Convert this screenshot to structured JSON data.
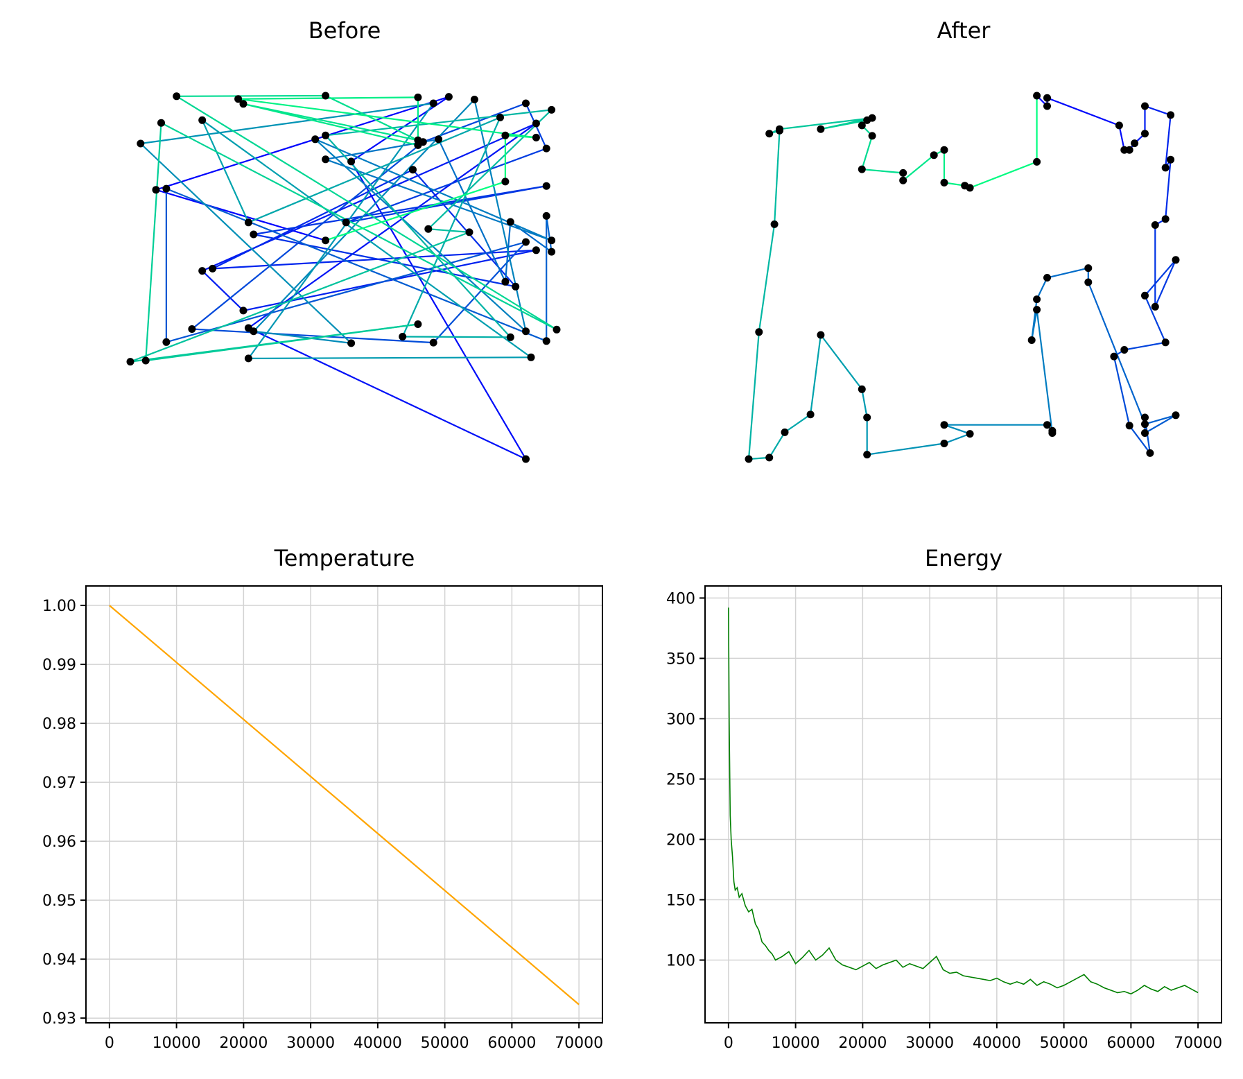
{
  "chart_data": [
    {
      "id": "before",
      "type": "line",
      "title": "Before",
      "axis_visible": false,
      "point_color": "#000000",
      "colormap": "winter",
      "points": [
        [
          -0.22,
          85.28
        ],
        [
          -0.55,
          86.21
        ],
        [
          0.02,
          87.92
        ],
        [
          -0.17,
          86.73
        ],
        [
          0.17,
          81.26
        ],
        [
          -0.37,
          83.67
        ],
        [
          0.19,
          87.43
        ],
        [
          -0.46,
          84.72
        ],
        [
          -0.38,
          83.99
        ],
        [
          0.19,
          85.1
        ],
        [
          -0.44,
          84.76
        ],
        [
          -0.05,
          86.58
        ],
        [
          0.15,
          84.43
        ],
        [
          -0.36,
          85.39
        ],
        [
          0.21,
          86.28
        ],
        [
          -0.18,
          85.61
        ],
        [
          0.21,
          86.97
        ],
        [
          0.17,
          87.8
        ],
        [
          -0.03,
          87.09
        ],
        [
          -0.48,
          83.65
        ],
        [
          -0.01,
          83.4
        ],
        [
          0.17,
          85.25
        ],
        [
          -0.53,
          83.41
        ],
        [
          -0.53,
          86.23
        ],
        [
          0.21,
          83.43
        ],
        [
          0.21,
          85.73
        ],
        [
          0.22,
          85.07
        ],
        [
          0.14,
          85.62
        ],
        [
          0.13,
          84.52
        ],
        [
          0.0,
          87.14
        ],
        [
          -0.22,
          86.77
        ],
        [
          0.22,
          85.28
        ],
        [
          -0.24,
          87.14
        ],
        [
          0.17,
          83.61
        ],
        [
          0.07,
          87.87
        ],
        [
          -0.36,
          83.61
        ],
        [
          -0.17,
          83.39
        ],
        [
          -0.58,
          87.06
        ],
        [
          -0.01,
          87.8
        ],
        [
          -0.37,
          83.11
        ],
        [
          0.18,
          83.13
        ],
        [
          -0.46,
          87.49
        ],
        [
          -0.37,
          85.61
        ],
        [
          0.12,
          87.54
        ],
        [
          -0.07,
          83.51
        ],
        [
          0.14,
          83.5
        ],
        [
          -0.22,
          87.21
        ],
        [
          0.22,
          87.68
        ],
        [
          -0.02,
          85.49
        ],
        [
          0.06,
          85.43
        ],
        [
          -0.6,
          83.05
        ],
        [
          -0.04,
          83.74
        ],
        [
          -0.57,
          83.07
        ],
        [
          -0.54,
          87.44
        ],
        [
          0.23,
          83.64
        ],
        [
          -0.51,
          87.93
        ],
        [
          -0.22,
          87.94
        ],
        [
          -0.04,
          87.12
        ],
        [
          -0.38,
          87.79
        ],
        [
          -0.04,
          87.03
        ],
        [
          -0.04,
          87.91
        ],
        [
          -0.39,
          87.88
        ],
        [
          0.19,
          87.17
        ],
        [
          0.13,
          87.21
        ],
        [
          0.13,
          86.36
        ]
      ]
    },
    {
      "id": "after",
      "type": "line",
      "title": "After",
      "axis_visible": false,
      "point_color": "#000000",
      "colormap": "winter",
      "points": [
        [
          -0.04,
          87.94
        ],
        [
          -0.02,
          87.8
        ],
        [
          -0.02,
          87.91
        ],
        [
          0.12,
          87.54
        ],
        [
          0.13,
          87.21
        ],
        [
          0.14,
          87.21
        ],
        [
          0.15,
          87.3
        ],
        [
          0.17,
          87.43
        ],
        [
          0.17,
          87.8
        ],
        [
          0.22,
          87.68
        ],
        [
          0.21,
          86.97
        ],
        [
          0.22,
          87.08
        ],
        [
          0.21,
          86.28
        ],
        [
          0.19,
          86.2
        ],
        [
          0.19,
          85.1
        ],
        [
          0.23,
          85.73
        ],
        [
          0.17,
          85.25
        ],
        [
          0.21,
          84.62
        ],
        [
          0.13,
          84.52
        ],
        [
          0.11,
          84.43
        ],
        [
          0.14,
          83.5
        ],
        [
          0.18,
          83.13
        ],
        [
          0.17,
          83.61
        ],
        [
          0.17,
          83.4
        ],
        [
          0.23,
          83.64
        ],
        [
          0.17,
          83.52
        ],
        [
          0.06,
          85.43
        ],
        [
          0.06,
          85.62
        ],
        [
          -0.02,
          85.49
        ],
        [
          -0.04,
          85.2
        ],
        [
          -0.05,
          84.65
        ],
        [
          -0.04,
          85.06
        ],
        [
          -0.01,
          83.4
        ],
        [
          -0.01,
          83.43
        ],
        [
          -0.02,
          83.51
        ],
        [
          -0.22,
          83.51
        ],
        [
          -0.17,
          83.39
        ],
        [
          -0.22,
          83.26
        ],
        [
          -0.37,
          83.11
        ],
        [
          -0.37,
          83.61
        ],
        [
          -0.38,
          83.99
        ],
        [
          -0.46,
          84.72
        ],
        [
          -0.48,
          83.65
        ],
        [
          -0.53,
          83.41
        ],
        [
          -0.56,
          83.07
        ],
        [
          -0.6,
          83.05
        ],
        [
          -0.58,
          84.76
        ],
        [
          -0.55,
          86.21
        ],
        [
          -0.54,
          87.47
        ],
        [
          -0.56,
          87.43
        ],
        [
          -0.54,
          87.49
        ],
        [
          -0.36,
          87.64
        ],
        [
          -0.46,
          87.49
        ],
        [
          -0.37,
          87.61
        ],
        [
          -0.38,
          87.54
        ],
        [
          -0.36,
          87.4
        ],
        [
          -0.38,
          86.95
        ],
        [
          -0.3,
          86.9
        ],
        [
          -0.3,
          86.8
        ],
        [
          -0.24,
          87.14
        ],
        [
          -0.22,
          87.21
        ],
        [
          -0.22,
          86.77
        ],
        [
          -0.18,
          86.73
        ],
        [
          -0.17,
          86.7
        ],
        [
          -0.04,
          87.05
        ]
      ]
    },
    {
      "id": "temperature",
      "type": "line",
      "title": "Temperature",
      "xlabel": "",
      "ylabel": "",
      "color": "#ffa500",
      "grid": true,
      "xlim": [
        -3500,
        73500
      ],
      "ylim": [
        0.9292,
        1.0033
      ],
      "xticks": [
        0,
        10000,
        20000,
        30000,
        40000,
        50000,
        60000,
        70000
      ],
      "yticks": [
        0.93,
        0.94,
        0.95,
        0.96,
        0.97,
        0.98,
        0.99,
        1.0
      ],
      "xtick_labels": [
        "0",
        "10000",
        "20000",
        "30000",
        "40000",
        "50000",
        "60000",
        "70000"
      ],
      "ytick_labels": [
        "0.93",
        "0.94",
        "0.95",
        "0.96",
        "0.97",
        "0.98",
        "0.99",
        "1.00"
      ],
      "x": [
        0,
        70000
      ],
      "y": [
        1.0,
        0.9323
      ]
    },
    {
      "id": "energy",
      "type": "line",
      "title": "Energy",
      "xlabel": "",
      "ylabel": "",
      "color": "#008000",
      "grid": true,
      "xlim": [
        -3500,
        73500
      ],
      "ylim": [
        48,
        410
      ],
      "xticks": [
        0,
        10000,
        20000,
        30000,
        40000,
        50000,
        60000,
        70000
      ],
      "yticks": [
        100,
        150,
        200,
        250,
        300,
        350,
        400
      ],
      "xtick_labels": [
        "0",
        "10000",
        "20000",
        "30000",
        "40000",
        "50000",
        "60000",
        "70000"
      ],
      "ytick_labels": [
        "100",
        "150",
        "200",
        "250",
        "300",
        "350",
        "400"
      ],
      "x": [
        0,
        100,
        250,
        400,
        600,
        800,
        1000,
        1300,
        1600,
        2000,
        2500,
        3000,
        3500,
        4000,
        4500,
        5000,
        5500,
        6000,
        6500,
        7000,
        8000,
        9000,
        10000,
        11000,
        12000,
        13000,
        14000,
        15000,
        16000,
        17000,
        18000,
        19000,
        20000,
        21000,
        22000,
        23000,
        24000,
        25000,
        26000,
        27000,
        28000,
        29000,
        30000,
        31000,
        32000,
        33000,
        34000,
        35000,
        36000,
        37000,
        38000,
        39000,
        40000,
        41000,
        42000,
        43000,
        44000,
        45000,
        46000,
        47000,
        48000,
        49000,
        50000,
        51000,
        52000,
        53000,
        54000,
        55000,
        56000,
        57000,
        58000,
        59000,
        60000,
        61000,
        62000,
        63000,
        64000,
        65000,
        66000,
        67000,
        68000,
        69000,
        70000
      ],
      "y": [
        392,
        300,
        220,
        200,
        185,
        165,
        158,
        160,
        152,
        155,
        145,
        140,
        142,
        130,
        125,
        115,
        112,
        108,
        105,
        100,
        103,
        107,
        97,
        102,
        108,
        100,
        104,
        110,
        100,
        96,
        94,
        92,
        95,
        98,
        93,
        96,
        98,
        100,
        94,
        97,
        95,
        93,
        98,
        103,
        92,
        89,
        90,
        87,
        86,
        85,
        84,
        83,
        85,
        82,
        80,
        82,
        80,
        84,
        79,
        82,
        80,
        77,
        79,
        82,
        85,
        88,
        82,
        80,
        77,
        75,
        73,
        74,
        72,
        75,
        79,
        76,
        74,
        78,
        75,
        77,
        79,
        76,
        73
      ]
    }
  ]
}
